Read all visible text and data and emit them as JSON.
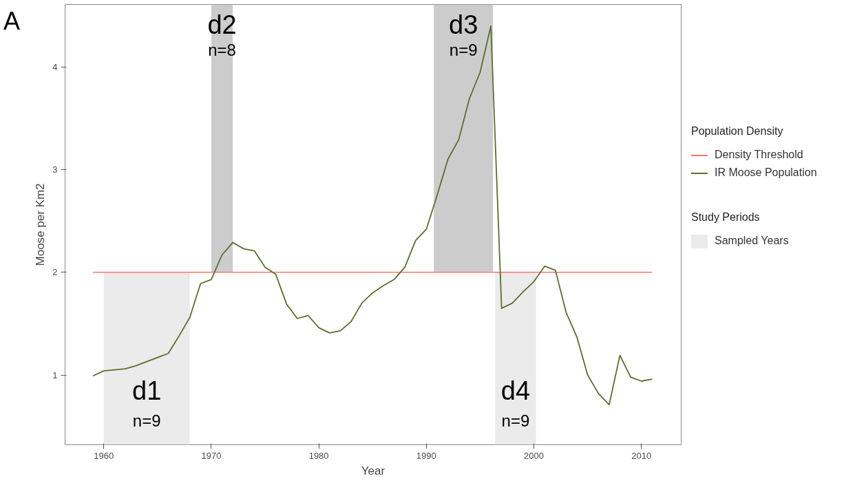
{
  "chart_data": {
    "type": "line",
    "xlabel": "Year",
    "ylabel": "Moose per Km2",
    "legend_title": [
      "Population Density",
      "Study Periods"
    ],
    "x": [
      1959,
      1960,
      1961,
      1962,
      1963,
      1964,
      1965,
      1966,
      1967,
      1968,
      1969,
      1970,
      1971,
      1972,
      1973,
      1974,
      1975,
      1976,
      1977,
      1978,
      1979,
      1980,
      1981,
      1982,
      1983,
      1984,
      1985,
      1986,
      1987,
      1988,
      1989,
      1990,
      1991,
      1992,
      1993,
      1994,
      1995,
      1996,
      1997,
      1998,
      1999,
      2000,
      2001,
      2002,
      2003,
      2004,
      2005,
      2006,
      2007,
      2008,
      2009,
      2010,
      2011
    ],
    "series": [
      {
        "name": "IR Moose Population",
        "color": "#5a6e2e",
        "values": [
          0.99,
          1.04,
          1.05,
          1.06,
          1.09,
          1.13,
          1.17,
          1.21,
          1.38,
          1.56,
          1.89,
          1.93,
          2.17,
          2.29,
          2.23,
          2.21,
          2.05,
          1.98,
          1.69,
          1.55,
          1.58,
          1.46,
          1.41,
          1.43,
          1.52,
          1.7,
          1.8,
          1.87,
          1.93,
          2.05,
          2.31,
          2.42,
          2.75,
          3.1,
          3.29,
          3.69,
          3.95,
          4.4,
          1.65,
          1.7,
          1.81,
          1.91,
          2.06,
          2.02,
          1.61,
          1.37,
          1.0,
          0.82,
          0.71,
          1.19,
          0.98,
          0.94,
          0.96
        ]
      }
    ],
    "xlim": [
      1956.4,
      2013.7
    ],
    "ylim": [
      0.32,
      4.61
    ],
    "xticks": [
      1960,
      1970,
      1980,
      1990,
      2000,
      2010
    ],
    "yticks": [
      1,
      2,
      3,
      4
    ],
    "ref_lines": [
      {
        "axis": "y",
        "value": 2,
        "label": "Density Threshold",
        "color": "#f8766d"
      }
    ],
    "bands": [
      {
        "axis": "x",
        "from": 1960,
        "to": 1968,
        "label": "d1",
        "color": "#ebebeb"
      },
      {
        "axis": "x",
        "from": 1970,
        "to": 1972,
        "label": "d2",
        "color": "#cccccc"
      },
      {
        "axis": "x",
        "from": 1990.7,
        "to": 1996.2,
        "label": "d3",
        "color": "#cccccc"
      },
      {
        "axis": "x",
        "from": 1996.4,
        "to": 2000.2,
        "label": "d4",
        "color": "#ebebeb"
      }
    ],
    "annotations": [
      "A",
      "Sampled Years",
      "n=9",
      "n=8",
      "n=9",
      "n=9"
    ],
    "grid": false,
    "legend": "right",
    "line_style": "solid",
    "marker": "none"
  }
}
